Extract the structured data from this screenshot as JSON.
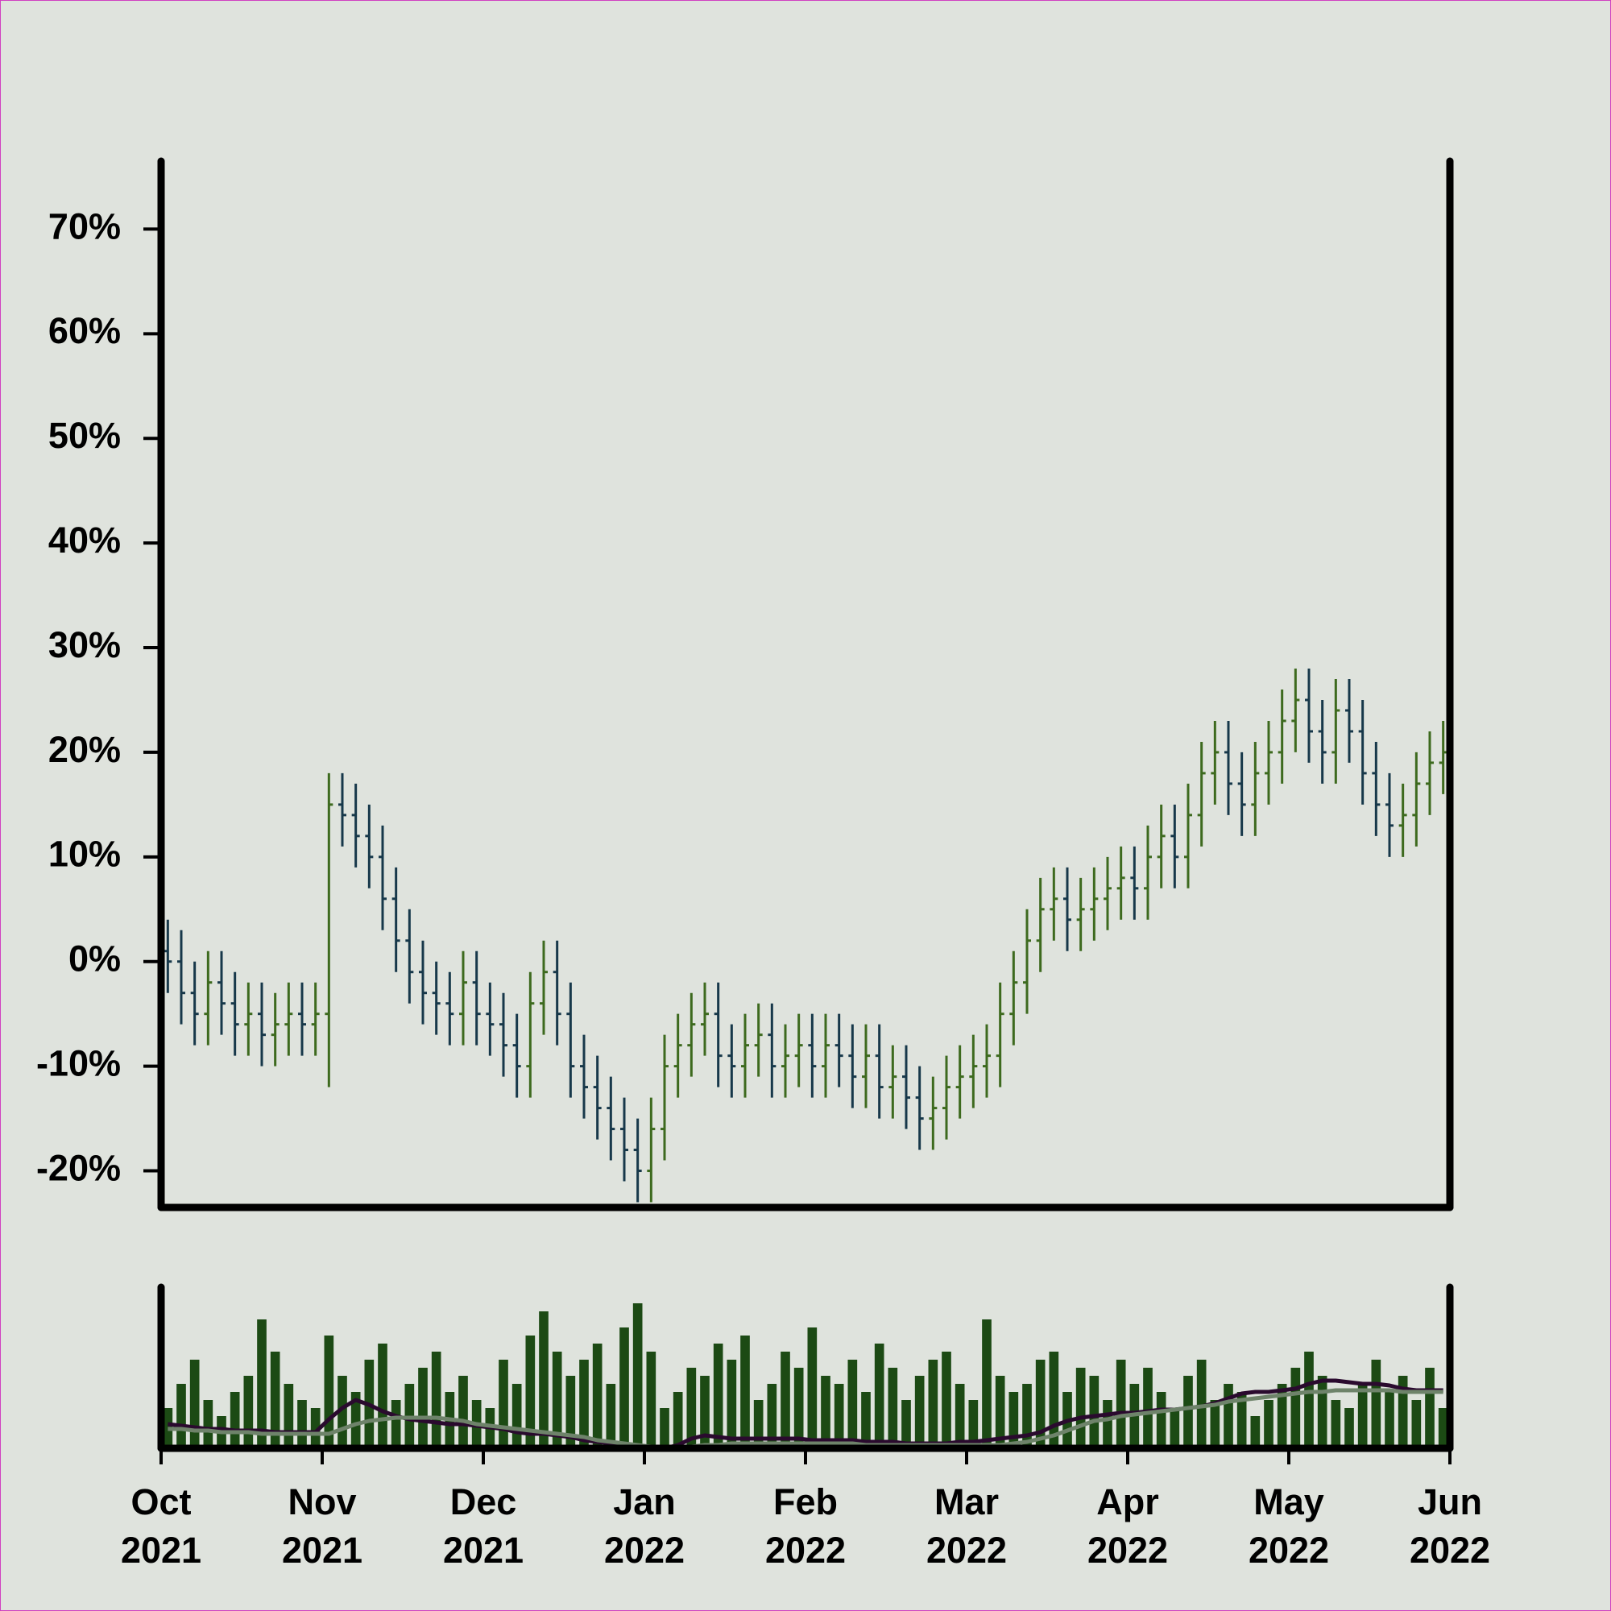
{
  "chart_data": {
    "type": "ohlc",
    "categories": [
      null,
      null,
      null,
      null,
      null,
      null,
      null,
      null,
      null,
      null,
      null,
      null,
      null,
      null,
      null,
      null,
      null,
      null,
      null,
      null,
      null,
      null,
      null,
      null,
      null,
      null,
      null,
      null,
      null,
      null,
      null,
      null,
      null,
      null,
      null,
      null,
      null,
      null,
      null,
      null,
      null,
      null,
      null,
      null,
      null,
      null,
      null,
      null,
      null,
      null,
      null,
      null,
      null,
      null,
      null,
      null,
      null,
      null,
      null,
      null,
      null,
      null,
      null,
      null,
      null,
      null,
      null,
      null,
      null,
      null,
      null,
      null,
      null,
      null,
      null,
      null,
      null,
      null,
      null,
      null,
      null,
      null,
      null,
      null,
      null,
      null,
      null,
      null,
      null,
      null,
      null,
      null,
      null,
      null,
      null,
      null
    ],
    "open": [
      1,
      0,
      -3,
      -5,
      -2,
      -4,
      -6,
      -5,
      -7,
      -6,
      -5,
      -6,
      -5,
      15,
      14,
      12,
      10,
      6,
      2,
      -1,
      -3,
      -4,
      -5,
      -2,
      -5,
      -6,
      -8,
      -10,
      -4,
      -1,
      -5,
      -10,
      -12,
      -14,
      -16,
      -18,
      -20,
      -16,
      -10,
      -8,
      -6,
      -5,
      -9,
      -10,
      -8,
      -7,
      -10,
      -9,
      -8,
      -10,
      -8,
      -9,
      -11,
      -9,
      -12,
      -11,
      -13,
      -15,
      -14,
      -12,
      -11,
      -10,
      -9,
      -5,
      -2,
      2,
      5,
      6,
      4,
      5,
      6,
      7,
      8,
      7,
      10,
      12,
      10,
      14,
      18,
      20,
      17,
      15,
      18,
      20,
      23,
      25,
      22,
      20,
      24,
      22,
      18,
      15,
      13,
      14,
      17,
      19
    ],
    "high": [
      4,
      3,
      0,
      1,
      1,
      -1,
      -2,
      -2,
      -3,
      -2,
      -2,
      -2,
      18,
      18,
      17,
      15,
      13,
      9,
      5,
      2,
      0,
      -1,
      1,
      1,
      -2,
      -3,
      -5,
      -1,
      2,
      2,
      -2,
      -7,
      -9,
      -11,
      -13,
      -15,
      -13,
      -7,
      -5,
      -3,
      -2,
      -2,
      -6,
      -5,
      -4,
      -4,
      -6,
      -5,
      -5,
      -5,
      -5,
      -6,
      -6,
      -6,
      -8,
      -8,
      -10,
      -11,
      -9,
      -8,
      -7,
      -6,
      -2,
      1,
      5,
      8,
      9,
      9,
      8,
      9,
      10,
      11,
      11,
      13,
      15,
      15,
      17,
      21,
      23,
      23,
      20,
      21,
      23,
      26,
      28,
      28,
      25,
      27,
      27,
      25,
      21,
      18,
      17,
      20,
      22,
      23
    ],
    "low": [
      -3,
      -6,
      -8,
      -8,
      -7,
      -9,
      -9,
      -10,
      -10,
      -9,
      -9,
      -9,
      -12,
      11,
      9,
      7,
      3,
      -1,
      -4,
      -6,
      -7,
      -8,
      -8,
      -8,
      -9,
      -11,
      -13,
      -13,
      -7,
      -8,
      -13,
      -15,
      -17,
      -19,
      -21,
      -23,
      -23,
      -19,
      -13,
      -11,
      -9,
      -12,
      -13,
      -13,
      -11,
      -13,
      -13,
      -12,
      -13,
      -13,
      -12,
      -14,
      -14,
      -15,
      -15,
      -16,
      -18,
      -18,
      -17,
      -15,
      -14,
      -13,
      -12,
      -8,
      -5,
      -1,
      2,
      1,
      1,
      2,
      3,
      4,
      4,
      4,
      7,
      7,
      7,
      11,
      15,
      14,
      12,
      12,
      15,
      17,
      20,
      19,
      17,
      17,
      19,
      15,
      12,
      10,
      10,
      11,
      14,
      16
    ],
    "close": [
      0,
      -3,
      -5,
      -2,
      -4,
      -6,
      -5,
      -7,
      -6,
      -5,
      -6,
      -5,
      15,
      14,
      12,
      10,
      6,
      2,
      -1,
      -3,
      -4,
      -5,
      -2,
      -5,
      -6,
      -8,
      -10,
      -4,
      -1,
      -5,
      -10,
      -12,
      -14,
      -16,
      -18,
      -20,
      -16,
      -10,
      -8,
      -6,
      -5,
      -9,
      -10,
      -8,
      -7,
      -10,
      -9,
      -8,
      -10,
      -8,
      -9,
      -11,
      -9,
      -12,
      -11,
      -13,
      -15,
      -14,
      -12,
      -11,
      -10,
      -9,
      -5,
      -2,
      2,
      5,
      6,
      4,
      5,
      6,
      7,
      8,
      7,
      10,
      12,
      10,
      14,
      18,
      20,
      17,
      15,
      18,
      20,
      23,
      25,
      22,
      20,
      24,
      22,
      18,
      15,
      13,
      14,
      17,
      19,
      20
    ],
    "up_color": "#3d6a1e",
    "down_color": "#17384a",
    "ylim": [
      -23.5,
      76.5
    ],
    "yticks": [
      {
        "value": -20,
        "label": "-20%"
      },
      {
        "value": -10,
        "label": "-10%"
      },
      {
        "value": 0,
        "label": "0%"
      },
      {
        "value": 10,
        "label": "10%"
      },
      {
        "value": 20,
        "label": "20%"
      },
      {
        "value": 30,
        "label": "30%"
      },
      {
        "value": 40,
        "label": "40%"
      },
      {
        "value": 50,
        "label": "50%"
      },
      {
        "value": 60,
        "label": "60%"
      },
      {
        "value": 70,
        "label": "70%"
      }
    ],
    "xlim": [
      0,
      96
    ],
    "xticks": [
      {
        "value": 0,
        "label": "Oct\n2021"
      },
      {
        "value": 12,
        "label": "Nov\n2021"
      },
      {
        "value": 24,
        "label": "Dec\n2021"
      },
      {
        "value": 36,
        "label": "Jan\n2022"
      },
      {
        "value": 48,
        "label": "Feb\n2022"
      },
      {
        "value": 60,
        "label": "Mar\n2022"
      },
      {
        "value": 72,
        "label": "Apr\n2022"
      },
      {
        "value": 84,
        "label": "May\n2022"
      },
      {
        "value": 96,
        "label": "Jun\n2022"
      }
    ],
    "volume": {
      "color": "#1c4a14",
      "ylim": [
        0,
        100
      ],
      "values": [
        25,
        40,
        55,
        30,
        20,
        35,
        45,
        80,
        60,
        40,
        30,
        25,
        70,
        45,
        35,
        55,
        65,
        30,
        40,
        50,
        60,
        35,
        45,
        30,
        25,
        55,
        40,
        70,
        85,
        60,
        45,
        55,
        65,
        40,
        75,
        90,
        60,
        25,
        35,
        50,
        45,
        65,
        55,
        70,
        30,
        40,
        60,
        50,
        75,
        45,
        40,
        55,
        35,
        65,
        50,
        30,
        45,
        55,
        60,
        40,
        30,
        80,
        45,
        35,
        40,
        55,
        60,
        35,
        50,
        45,
        30,
        55,
        40,
        50,
        35,
        25,
        45,
        55,
        30,
        40,
        35,
        20,
        30,
        40,
        50,
        60,
        45,
        30,
        25,
        40,
        55,
        35,
        45,
        30,
        50,
        25
      ]
    },
    "moving_averages": [
      {
        "color": "#2a0a2e",
        "values": [
          15,
          14,
          13,
          12,
          12,
          11,
          11,
          11,
          10,
          10,
          10,
          10,
          18,
          25,
          30,
          27,
          23,
          20,
          18,
          17,
          16,
          15,
          15,
          14,
          13,
          12,
          10,
          9,
          9,
          8,
          7,
          5,
          4,
          3,
          2,
          1,
          0,
          0,
          2,
          6,
          8,
          7,
          6,
          6,
          6,
          6,
          6,
          6,
          5,
          5,
          5,
          5,
          4,
          4,
          4,
          3,
          3,
          3,
          3,
          4,
          4,
          5,
          6,
          7,
          8,
          10,
          14,
          17,
          19,
          20,
          21,
          22,
          22,
          23,
          24,
          24,
          25,
          26,
          28,
          31,
          34,
          35,
          35,
          36,
          37,
          40,
          42,
          42,
          41,
          40,
          40,
          39,
          37,
          36,
          36,
          36
        ]
      },
      {
        "color": "#6e836a",
        "values": [
          12,
          12,
          11,
          11,
          10,
          10,
          10,
          9,
          9,
          9,
          9,
          9,
          9,
          12,
          15,
          17,
          18,
          19,
          19,
          19,
          19,
          18,
          17,
          15,
          14,
          13,
          12,
          11,
          10,
          9,
          8,
          7,
          5,
          4,
          3,
          2,
          1,
          1,
          1,
          1,
          2,
          2,
          3,
          3,
          3,
          3,
          3,
          3,
          3,
          3,
          3,
          3,
          2,
          2,
          2,
          2,
          2,
          2,
          2,
          2,
          2,
          2,
          2,
          3,
          4,
          6,
          8,
          11,
          14,
          17,
          18,
          20,
          21,
          22,
          23,
          24,
          25,
          26,
          27,
          29,
          30,
          31,
          32,
          33,
          34,
          35,
          35,
          36,
          36,
          36,
          36,
          36,
          35,
          35,
          35,
          35
        ]
      }
    ]
  }
}
